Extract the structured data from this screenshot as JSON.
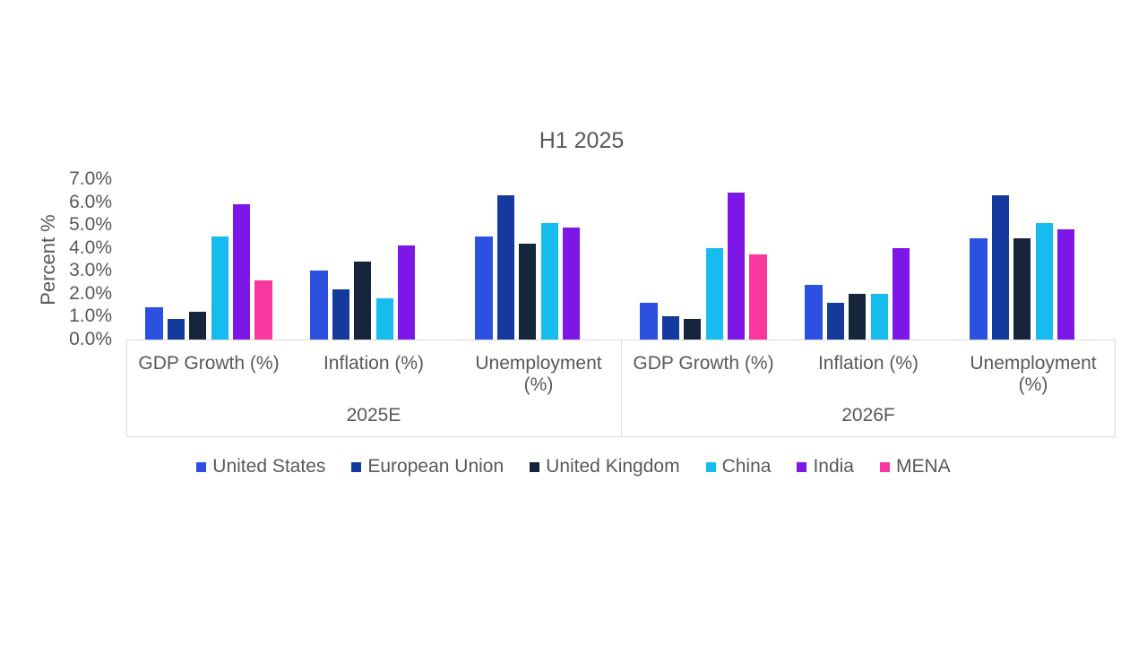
{
  "palette": {
    "text": "#595959",
    "axis_line": "#d9d9d9",
    "background": "#ffffff"
  },
  "chart_data": {
    "type": "bar",
    "title": "H1 2025",
    "xlabel": "",
    "ylabel": "Percent %",
    "ylim": [
      0,
      7
    ],
    "ytick_step": 1,
    "ytick_labels": [
      "0.0%",
      "1.0%",
      "2.0%",
      "3.0%",
      "4.0%",
      "5.0%",
      "6.0%",
      "7.0%"
    ],
    "grid": false,
    "legend_position": "bottom",
    "sections": [
      {
        "label": "2025E",
        "categories": [
          "GDP Growth (%)",
          "Inflation (%)",
          "Unemployment (%)"
        ]
      },
      {
        "label": "2026F",
        "categories": [
          "GDP Growth (%)",
          "Inflation (%)",
          "Unemployment (%)"
        ]
      }
    ],
    "series": [
      {
        "name": "United States",
        "color": "#2c50e0",
        "values": [
          1.4,
          3.0,
          4.5,
          1.6,
          2.4,
          4.4
        ]
      },
      {
        "name": "European Union",
        "color": "#143a9e",
        "values": [
          0.9,
          2.2,
          6.3,
          1.0,
          1.6,
          6.3
        ]
      },
      {
        "name": "United Kingdom",
        "color": "#16253c",
        "values": [
          1.2,
          3.4,
          4.2,
          0.9,
          2.0,
          4.4
        ]
      },
      {
        "name": "China",
        "color": "#17bcef",
        "values": [
          4.5,
          1.8,
          5.1,
          4.0,
          2.0,
          5.1
        ]
      },
      {
        "name": "India",
        "color": "#7d17e8",
        "values": [
          5.9,
          4.1,
          4.9,
          6.4,
          4.0,
          4.8
        ]
      },
      {
        "name": "MENA",
        "color": "#f9379f",
        "values": [
          2.6,
          null,
          null,
          3.7,
          null,
          null
        ]
      }
    ]
  }
}
